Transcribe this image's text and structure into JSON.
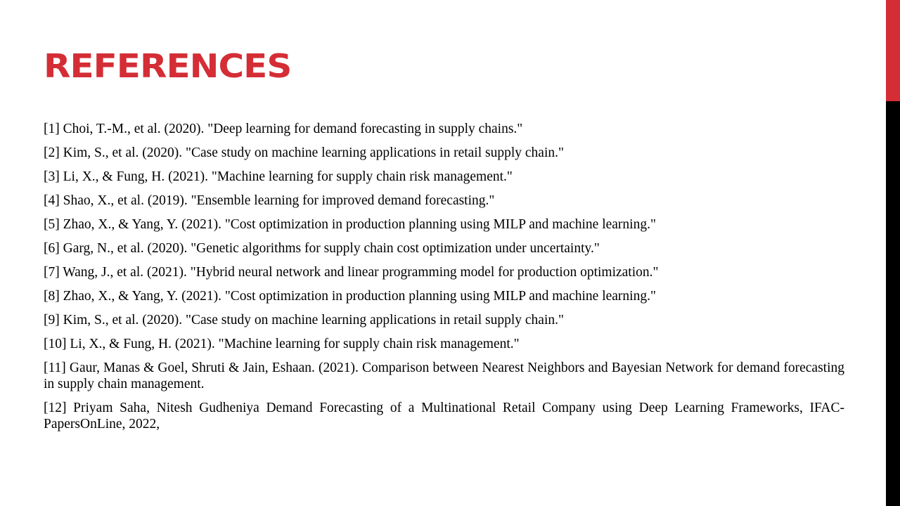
{
  "slide": {
    "title": "REFERENCES",
    "colors": {
      "title": "#d42d36",
      "accent_top": "#d42d36",
      "accent_bottom": "#000000",
      "text": "#000000",
      "background": "#ffffff"
    }
  },
  "references": [
    "[1] Choi, T.-M., et al. (2020). \"Deep learning for demand forecasting in supply chains.\"",
    "[2] Kim, S., et al. (2020). \"Case study on machine learning applications in retail supply chain.\"",
    "[3] Li, X., & Fung, H. (2021). \"Machine learning for supply chain risk management.\"",
    "[4] Shao, X., et al. (2019). \"Ensemble learning for improved demand forecasting.\"",
    "[5] Zhao, X., & Yang, Y. (2021). \"Cost optimization in production planning using MILP and machine learning.\"",
    "[6] Garg, N., et al. (2020). \"Genetic algorithms for supply chain cost optimization under uncertainty.\"",
    "[7] Wang, J., et al. (2021). \"Hybrid neural network and linear programming model for production optimization.\"",
    "[8] Zhao, X., & Yang, Y. (2021). \"Cost optimization in production planning using MILP and machine learning.\"",
    "[9] Kim, S., et al. (2020). \"Case study on machine learning applications in retail supply chain.\"",
    "[10] Li, X., & Fung, H. (2021). \"Machine learning for supply chain risk management.\"",
    "[11] Gaur, Manas & Goel, Shruti & Jain, Eshaan. (2021). Comparison between Nearest Neighbors and Bayesian Network for demand forecasting in supply chain management.",
    "[12] Priyam Saha, Nitesh Gudheniya Demand Forecasting of a Multinational Retail Company using Deep Learning Frameworks, IFAC-PapersOnLine, 2022,"
  ]
}
